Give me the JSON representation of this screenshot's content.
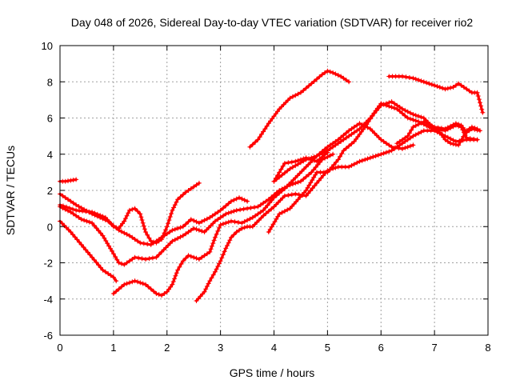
{
  "chart_data": {
    "type": "scatter",
    "title": "Day 048 of 2026, Sidereal Day-to-day VTEC variation (SDTVAR) for receiver rio2",
    "xlabel": "GPS time / hours",
    "ylabel": "SDTVAR / TECUs",
    "xlim": [
      0,
      8
    ],
    "ylim": [
      -6,
      10
    ],
    "xticks": [
      "0",
      "1",
      "2",
      "3",
      "4",
      "5",
      "6",
      "7",
      "8"
    ],
    "yticks": [
      "-6",
      "-4",
      "-2",
      "0",
      "2",
      "4",
      "6",
      "8",
      "10"
    ],
    "grid": true,
    "legend": "none",
    "marker": "plus",
    "color": "#ff0000",
    "series": [
      {
        "points": [
          [
            0.0,
            2.5
          ],
          [
            0.1,
            2.5
          ],
          [
            0.2,
            2.55
          ],
          [
            0.3,
            2.6
          ]
        ]
      },
      {
        "points": [
          [
            0.0,
            1.2
          ],
          [
            0.3,
            0.9
          ],
          [
            0.6,
            0.8
          ],
          [
            0.85,
            0.5
          ],
          [
            1.0,
            0.0
          ],
          [
            1.1,
            -0.1
          ],
          [
            1.2,
            0.3
          ],
          [
            1.3,
            0.9
          ],
          [
            1.4,
            1.0
          ],
          [
            1.5,
            0.7
          ],
          [
            1.6,
            -0.3
          ],
          [
            1.7,
            -0.8
          ],
          [
            1.8,
            -0.9
          ],
          [
            1.9,
            -0.7
          ],
          [
            2.0,
            0.0
          ],
          [
            2.1,
            0.9
          ],
          [
            2.2,
            1.5
          ],
          [
            2.35,
            1.9
          ],
          [
            2.5,
            2.2
          ],
          [
            2.6,
            2.4
          ]
        ]
      },
      {
        "points": [
          [
            0.0,
            1.8
          ],
          [
            0.3,
            1.2
          ],
          [
            0.6,
            0.7
          ],
          [
            0.9,
            0.3
          ],
          [
            1.1,
            -0.2
          ],
          [
            1.3,
            -0.5
          ],
          [
            1.5,
            -0.9
          ],
          [
            1.7,
            -1.0
          ],
          [
            1.9,
            -0.6
          ],
          [
            2.1,
            -0.2
          ],
          [
            2.3,
            0.0
          ],
          [
            2.45,
            0.4
          ],
          [
            2.6,
            0.2
          ],
          [
            2.8,
            0.5
          ],
          [
            3.0,
            0.9
          ],
          [
            3.2,
            1.4
          ],
          [
            3.35,
            1.6
          ],
          [
            3.5,
            1.4
          ]
        ]
      },
      {
        "points": [
          [
            0.0,
            1.1
          ],
          [
            0.2,
            0.8
          ],
          [
            0.4,
            0.4
          ],
          [
            0.6,
            0.2
          ],
          [
            0.8,
            -0.5
          ],
          [
            1.0,
            -1.5
          ],
          [
            1.1,
            -2.0
          ],
          [
            1.2,
            -2.1
          ],
          [
            1.3,
            -1.9
          ],
          [
            1.4,
            -1.7
          ],
          [
            1.6,
            -1.8
          ],
          [
            1.8,
            -1.7
          ],
          [
            1.9,
            -1.4
          ],
          [
            2.1,
            -0.8
          ],
          [
            2.3,
            -0.5
          ],
          [
            2.5,
            -0.1
          ],
          [
            2.7,
            -0.3
          ],
          [
            2.9,
            0.3
          ],
          [
            3.1,
            0.7
          ],
          [
            3.3,
            0.9
          ],
          [
            3.5,
            1.0
          ],
          [
            3.7,
            1.1
          ],
          [
            3.9,
            1.5
          ],
          [
            4.1,
            2.0
          ],
          [
            4.3,
            2.3
          ],
          [
            4.5,
            2.5
          ],
          [
            4.7,
            3.0
          ],
          [
            4.9,
            3.7
          ],
          [
            5.1,
            4.0
          ]
        ]
      },
      {
        "points": [
          [
            0.0,
            0.3
          ],
          [
            0.2,
            -0.3
          ],
          [
            0.4,
            -1.0
          ],
          [
            0.6,
            -1.7
          ],
          [
            0.8,
            -2.4
          ],
          [
            1.0,
            -2.8
          ],
          [
            1.05,
            -3.0
          ]
        ]
      },
      {
        "points": [
          [
            1.0,
            -3.7
          ],
          [
            1.2,
            -3.2
          ],
          [
            1.4,
            -3.0
          ],
          [
            1.6,
            -3.2
          ],
          [
            1.8,
            -3.7
          ],
          [
            1.9,
            -3.8
          ],
          [
            2.0,
            -3.6
          ],
          [
            2.1,
            -3.2
          ],
          [
            2.2,
            -2.4
          ],
          [
            2.3,
            -1.9
          ],
          [
            2.4,
            -1.6
          ],
          [
            2.6,
            -1.8
          ],
          [
            2.7,
            -1.6
          ],
          [
            2.8,
            -1.4
          ],
          [
            2.9,
            -0.6
          ],
          [
            3.0,
            0.1
          ],
          [
            3.2,
            0.3
          ],
          [
            3.4,
            0.2
          ],
          [
            3.6,
            0.5
          ],
          [
            3.8,
            0.9
          ],
          [
            4.0,
            1.6
          ],
          [
            4.2,
            2.1
          ],
          [
            4.4,
            2.7
          ],
          [
            4.6,
            3.3
          ],
          [
            4.8,
            3.9
          ],
          [
            5.0,
            4.4
          ],
          [
            5.2,
            4.8
          ],
          [
            5.4,
            5.3
          ],
          [
            5.6,
            5.7
          ],
          [
            5.8,
            5.4
          ],
          [
            6.0,
            4.8
          ],
          [
            6.2,
            4.4
          ],
          [
            6.4,
            4.3
          ],
          [
            6.6,
            4.5
          ]
        ]
      },
      {
        "points": [
          [
            2.55,
            -4.1
          ],
          [
            2.7,
            -3.6
          ],
          [
            2.8,
            -3.0
          ],
          [
            2.9,
            -2.5
          ],
          [
            3.0,
            -1.9
          ],
          [
            3.1,
            -1.2
          ],
          [
            3.2,
            -0.6
          ],
          [
            3.3,
            -0.3
          ],
          [
            3.4,
            -0.1
          ],
          [
            3.5,
            0.0
          ],
          [
            3.6,
            0.0
          ],
          [
            3.8,
            0.6
          ],
          [
            4.0,
            1.1
          ],
          [
            4.2,
            1.7
          ],
          [
            4.4,
            1.8
          ],
          [
            4.6,
            1.7
          ],
          [
            4.8,
            2.4
          ],
          [
            5.0,
            3.1
          ],
          [
            5.2,
            3.3
          ],
          [
            5.4,
            3.3
          ],
          [
            5.6,
            3.6
          ],
          [
            5.8,
            3.8
          ],
          [
            6.0,
            4.0
          ],
          [
            6.2,
            4.2
          ],
          [
            6.4,
            4.6
          ],
          [
            6.6,
            5.0
          ],
          [
            6.8,
            5.3
          ],
          [
            7.0,
            5.3
          ],
          [
            7.2,
            5.0
          ],
          [
            7.4,
            4.7
          ],
          [
            7.6,
            4.8
          ],
          [
            7.8,
            4.8
          ]
        ]
      },
      {
        "points": [
          [
            3.55,
            4.4
          ],
          [
            3.7,
            4.8
          ],
          [
            3.9,
            5.7
          ],
          [
            4.1,
            6.5
          ],
          [
            4.3,
            7.1
          ],
          [
            4.5,
            7.4
          ],
          [
            4.7,
            7.9
          ],
          [
            4.9,
            8.4
          ],
          [
            5.0,
            8.6
          ],
          [
            5.1,
            8.5
          ],
          [
            5.25,
            8.3
          ],
          [
            5.4,
            8.0
          ]
        ]
      },
      {
        "points": [
          [
            4.0,
            2.5
          ],
          [
            4.1,
            3.0
          ],
          [
            4.2,
            3.5
          ],
          [
            4.4,
            3.6
          ],
          [
            4.6,
            3.8
          ],
          [
            4.8,
            3.6
          ],
          [
            5.0,
            4.1
          ]
        ]
      },
      {
        "points": [
          [
            3.9,
            -0.3
          ],
          [
            4.1,
            0.7
          ],
          [
            4.3,
            1.0
          ],
          [
            4.6,
            2.0
          ],
          [
            4.8,
            3.0
          ],
          [
            5.0,
            3.0
          ],
          [
            5.2,
            3.7
          ],
          [
            5.3,
            4.2
          ],
          [
            5.5,
            4.7
          ],
          [
            5.7,
            5.5
          ],
          [
            5.9,
            6.4
          ],
          [
            6.0,
            6.8
          ],
          [
            6.1,
            6.7
          ],
          [
            6.3,
            6.5
          ],
          [
            6.5,
            6.0
          ],
          [
            6.7,
            5.8
          ],
          [
            6.9,
            5.5
          ],
          [
            7.1,
            5.2
          ],
          [
            7.2,
            4.8
          ],
          [
            7.3,
            4.6
          ],
          [
            7.45,
            4.5
          ],
          [
            7.6,
            5.3
          ],
          [
            7.7,
            5.5
          ],
          [
            7.8,
            5.4
          ]
        ]
      },
      {
        "points": [
          [
            4.0,
            2.5
          ],
          [
            4.3,
            3.2
          ],
          [
            4.6,
            3.7
          ],
          [
            4.8,
            3.9
          ],
          [
            5.0,
            4.2
          ],
          [
            5.3,
            4.8
          ],
          [
            5.6,
            5.4
          ],
          [
            5.8,
            6.0
          ],
          [
            6.0,
            6.7
          ],
          [
            6.2,
            6.9
          ],
          [
            6.4,
            6.5
          ],
          [
            6.6,
            6.2
          ],
          [
            6.8,
            6.0
          ],
          [
            7.0,
            5.4
          ],
          [
            7.2,
            5.3
          ],
          [
            7.4,
            5.6
          ],
          [
            7.5,
            5.5
          ],
          [
            7.6,
            4.9
          ],
          [
            7.8,
            4.8
          ]
        ]
      },
      {
        "points": [
          [
            6.15,
            8.3
          ],
          [
            6.4,
            8.3
          ],
          [
            6.6,
            8.2
          ],
          [
            6.8,
            8.0
          ],
          [
            7.0,
            7.8
          ],
          [
            7.2,
            7.6
          ],
          [
            7.35,
            7.7
          ],
          [
            7.45,
            7.9
          ],
          [
            7.6,
            7.6
          ],
          [
            7.7,
            7.4
          ],
          [
            7.8,
            7.4
          ],
          [
            7.9,
            6.3
          ]
        ]
      },
      {
        "points": [
          [
            6.3,
            4.6
          ],
          [
            6.5,
            5.0
          ],
          [
            6.6,
            5.5
          ],
          [
            6.8,
            5.8
          ],
          [
            7.0,
            5.5
          ],
          [
            7.2,
            5.4
          ],
          [
            7.4,
            5.7
          ],
          [
            7.5,
            5.6
          ],
          [
            7.6,
            5.2
          ],
          [
            7.7,
            5.4
          ],
          [
            7.85,
            5.3
          ]
        ]
      }
    ]
  }
}
